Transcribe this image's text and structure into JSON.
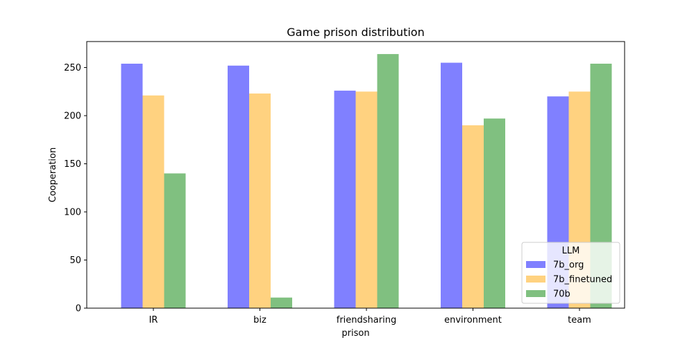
{
  "chart_data": {
    "type": "bar",
    "title": "Game prison distribution",
    "xlabel": "prison",
    "ylabel": "Cooperation",
    "categories": [
      "IR",
      "biz",
      "friendsharing",
      "environment",
      "team"
    ],
    "series": [
      {
        "name": "7b_org",
        "values": [
          254,
          252,
          226,
          255,
          220
        ],
        "color": "#8080ff"
      },
      {
        "name": "7b_finetuned",
        "values": [
          221,
          223,
          225,
          190,
          225
        ],
        "color": "#ffd280"
      },
      {
        "name": "70b",
        "values": [
          140,
          11,
          264,
          197,
          254
        ],
        "color": "#80c080"
      }
    ],
    "ylim": [
      0,
      277
    ],
    "yticks": [
      0,
      50,
      100,
      150,
      200,
      250
    ],
    "legend": {
      "title": "LLM",
      "placement": "lower-right"
    },
    "grid": false
  }
}
